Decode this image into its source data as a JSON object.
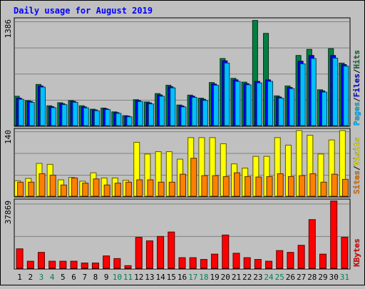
{
  "chart_data": [
    {
      "type": "bar",
      "title": "Daily usage for August 2019",
      "panel": "hits-files-pages",
      "y_tick_label": "1386",
      "ylim": [
        0,
        1386
      ],
      "categories": [
        "1",
        "2",
        "3",
        "4",
        "5",
        "6",
        "7",
        "8",
        "9",
        "10",
        "11",
        "12",
        "13",
        "14",
        "15",
        "16",
        "17",
        "18",
        "19",
        "20",
        "21",
        "22",
        "23",
        "24",
        "25",
        "26",
        "27",
        "28",
        "29",
        "30",
        "31"
      ],
      "weekend_days": [
        "3",
        "4",
        "10",
        "11",
        "17",
        "18",
        "24",
        "25",
        "31"
      ],
      "series": [
        {
          "name": "Hits",
          "color": "#008040",
          "values": [
            385,
            327,
            540,
            260,
            300,
            328,
            260,
            215,
            230,
            180,
            130,
            340,
            310,
            420,
            530,
            270,
            400,
            360,
            565,
            880,
            620,
            570,
            1380,
            1210,
            390,
            520,
            920,
            1000,
            470,
            1010,
            820
          ]
        },
        {
          "name": "Files",
          "color": "#0000ff",
          "values": [
            360,
            317,
            520,
            248,
            287,
            318,
            245,
            205,
            220,
            170,
            125,
            328,
            298,
            402,
            510,
            258,
            385,
            345,
            545,
            850,
            600,
            550,
            580,
            600,
            375,
            500,
            845,
            920,
            455,
            920,
            800
          ]
        },
        {
          "name": "Pages",
          "color": "#00c0ff",
          "values": [
            345,
            305,
            505,
            235,
            275,
            305,
            232,
            195,
            210,
            160,
            115,
            315,
            285,
            385,
            495,
            245,
            370,
            330,
            530,
            820,
            580,
            535,
            560,
            580,
            360,
            485,
            810,
            880,
            440,
            885,
            780
          ]
        }
      ],
      "legend": [
        "Pages",
        "Files",
        "Hits"
      ]
    },
    {
      "type": "bar",
      "panel": "sites-visits",
      "y_tick_label": "140",
      "ylim": [
        0,
        140
      ],
      "categories": [
        "1",
        "2",
        "3",
        "4",
        "5",
        "6",
        "7",
        "8",
        "9",
        "10",
        "11",
        "12",
        "13",
        "14",
        "15",
        "16",
        "17",
        "18",
        "19",
        "20",
        "21",
        "22",
        "23",
        "24",
        "25",
        "26",
        "27",
        "28",
        "29",
        "30",
        "31"
      ],
      "series": [
        {
          "name": "Visits",
          "color": "#ffff00",
          "values": [
            33,
            38,
            70,
            68,
            35,
            40,
            32,
            50,
            39,
            39,
            34,
            115,
            90,
            95,
            95,
            79,
            125,
            125,
            125,
            112,
            69,
            60,
            85,
            85,
            125,
            109,
            140,
            130,
            90,
            120,
            140
          ]
        },
        {
          "name": "Sites",
          "color": "#ff8000",
          "values": [
            30,
            30,
            48,
            45,
            24,
            39,
            28,
            37,
            24,
            28,
            30,
            35,
            35,
            30,
            30,
            47,
            81,
            44,
            44,
            42,
            50,
            42,
            41,
            42,
            48,
            42,
            44,
            48,
            30,
            47,
            36
          ]
        }
      ],
      "legend": [
        "Sites",
        "Visits"
      ]
    },
    {
      "type": "bar",
      "panel": "kbytes",
      "y_tick_label": "37869",
      "ylim": [
        0,
        37869
      ],
      "categories": [
        "1",
        "2",
        "3",
        "4",
        "5",
        "6",
        "7",
        "8",
        "9",
        "10",
        "11",
        "12",
        "13",
        "14",
        "15",
        "16",
        "17",
        "18",
        "19",
        "20",
        "21",
        "22",
        "23",
        "24",
        "25",
        "26",
        "27",
        "28",
        "29",
        "30",
        "31"
      ],
      "series": [
        {
          "name": "KBytes",
          "color": "#ff0000",
          "values": [
            11000,
            4000,
            9000,
            4000,
            4000,
            4000,
            3000,
            3000,
            7000,
            5500,
            1500,
            17500,
            15500,
            18000,
            20500,
            6000,
            6000,
            5000,
            8000,
            18800,
            8500,
            6000,
            5000,
            4000,
            10000,
            9000,
            13000,
            27500,
            8000,
            38000,
            17500
          ]
        }
      ],
      "legend": [
        "KBytes"
      ]
    }
  ]
}
